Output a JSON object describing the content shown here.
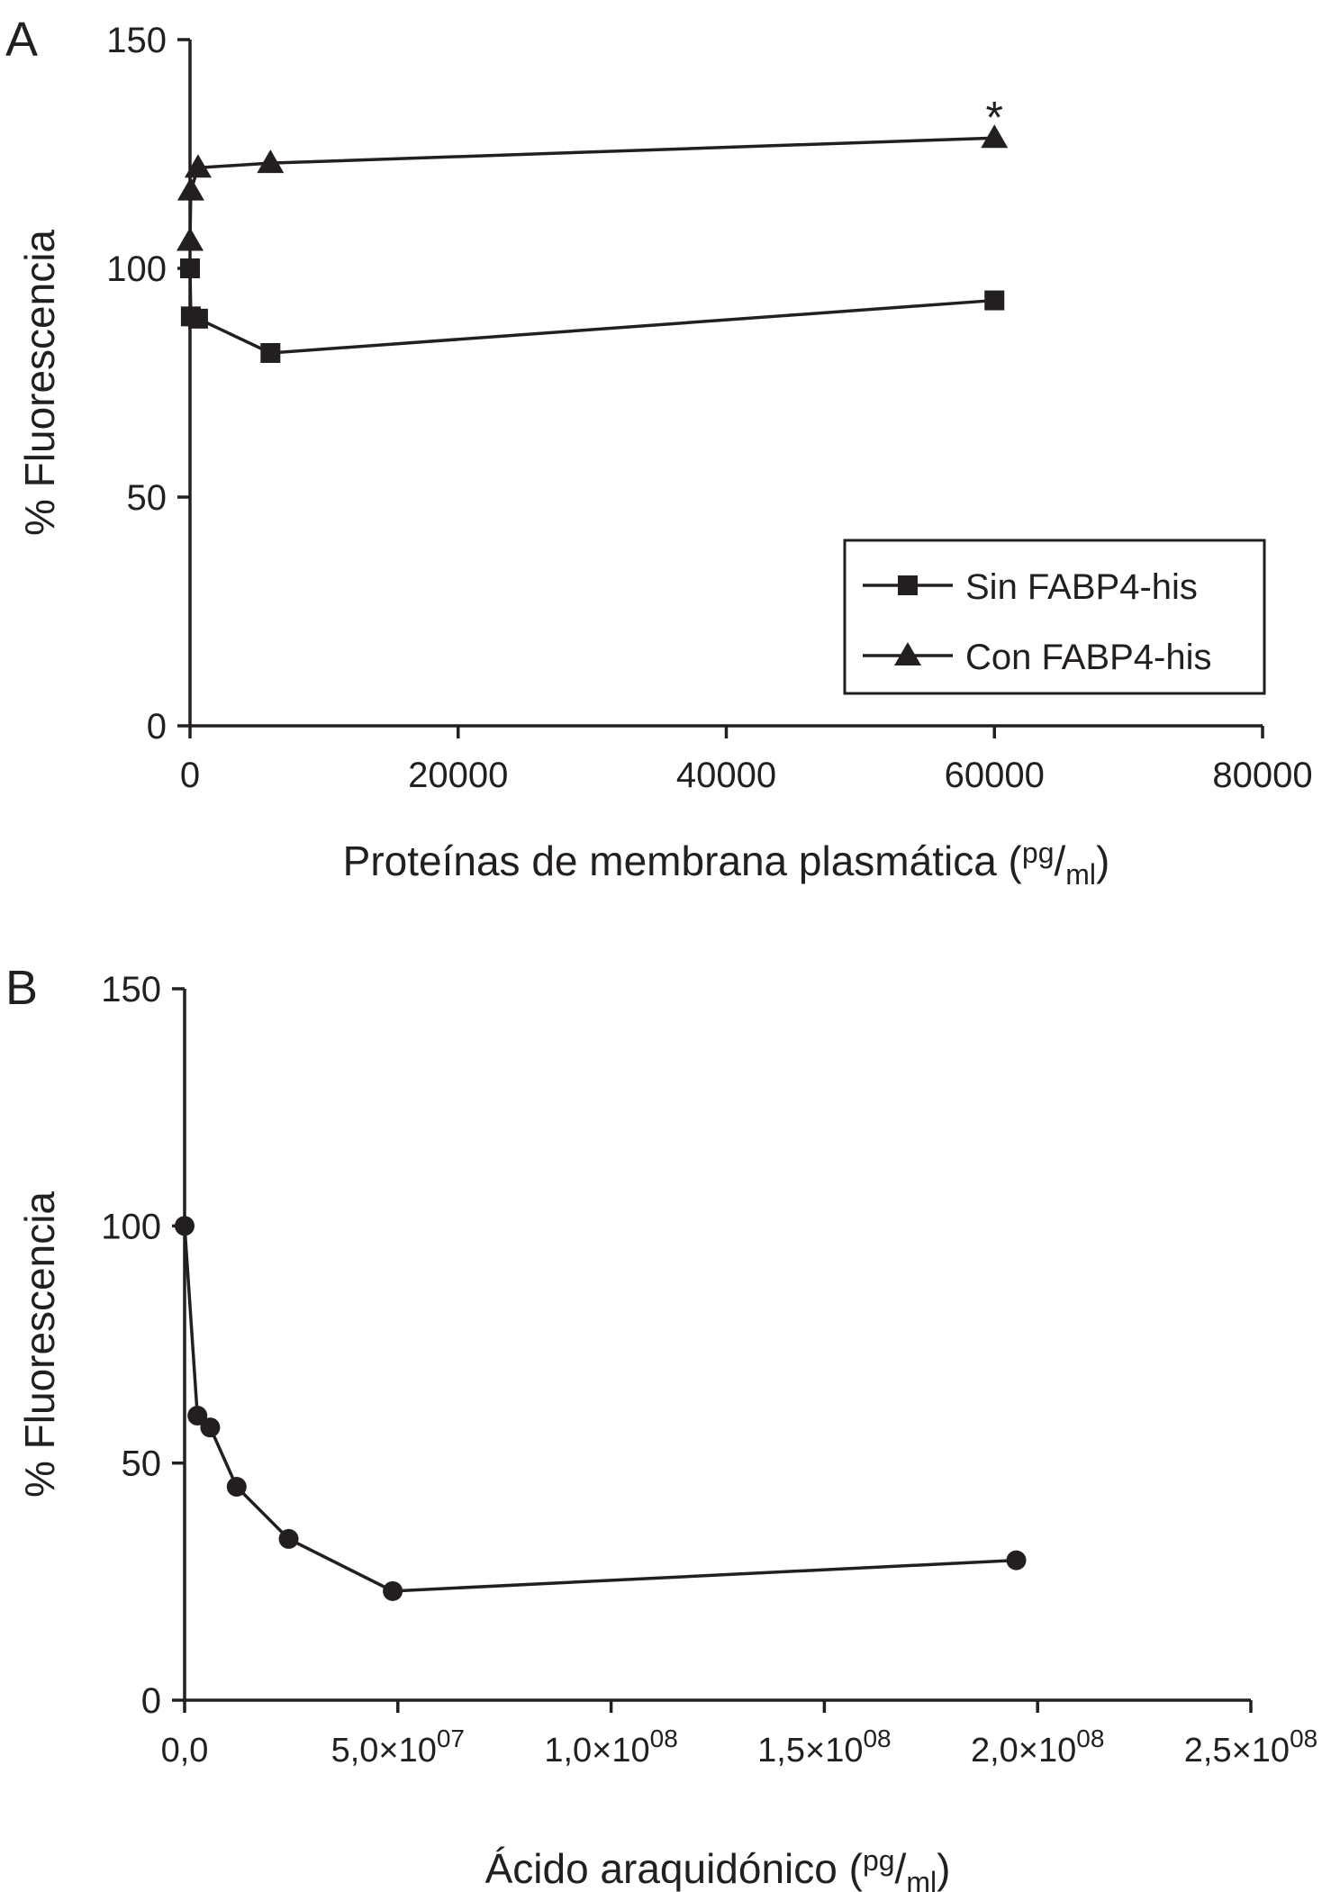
{
  "chart_data": [
    {
      "type": "line",
      "panel_label": "A",
      "xlabel": "Proteínas de membrana plasmática (",
      "xlabel_unit_num": "pg",
      "xlabel_unit_den": "ml",
      "xlabel_close": ")",
      "ylabel": "% Fluorescencia",
      "xlim": [
        0,
        80000
      ],
      "ylim": [
        0,
        150
      ],
      "x_ticks": [
        0,
        20000,
        40000,
        60000,
        80000
      ],
      "x_tick_labels": [
        "0",
        "20000",
        "40000",
        "60000",
        "80000"
      ],
      "y_ticks": [
        0,
        50,
        100,
        150
      ],
      "y_tick_labels": [
        "0",
        "50",
        "100",
        "150"
      ],
      "legend_position": "bottom-right",
      "colors": {
        "ink": "#231f20"
      },
      "series": [
        {
          "name": "Sin FABP4-his",
          "marker": "square",
          "x": [
            0,
            60,
            600,
            6000,
            60000
          ],
          "y": [
            100,
            89.5,
            89,
            81.5,
            93
          ]
        },
        {
          "name": "Con FABP4-his",
          "marker": "triangle",
          "x": [
            0,
            60,
            600,
            6000,
            60000
          ],
          "y": [
            106,
            117,
            122,
            123,
            128.5
          ]
        }
      ],
      "annotations": [
        {
          "text": "*",
          "x": 60000,
          "y": 134
        }
      ]
    },
    {
      "type": "line",
      "panel_label": "B",
      "xlabel": "Ácido araquidónico (",
      "xlabel_unit_num": "pg",
      "xlabel_unit_den": "ml",
      "xlabel_close": ")",
      "ylabel": "% Fluorescencia",
      "xlim": [
        0,
        250000000
      ],
      "ylim": [
        0,
        150
      ],
      "x_ticks": [
        0,
        50000000,
        100000000,
        150000000,
        200000000,
        250000000
      ],
      "x_tick_labels": [
        {
          "mant": "0,0",
          "exp": ""
        },
        {
          "mant": "5,0×10",
          "exp": "07"
        },
        {
          "mant": "1,0×10",
          "exp": "08"
        },
        {
          "mant": "1,5×10",
          "exp": "08"
        },
        {
          "mant": "2,0×10",
          "exp": "08"
        },
        {
          "mant": "2,5×10",
          "exp": "08"
        }
      ],
      "y_ticks": [
        0,
        50,
        100,
        150
      ],
      "y_tick_labels": [
        "0",
        "50",
        "100",
        "150"
      ],
      "colors": {
        "ink": "#231f20"
      },
      "series": [
        {
          "marker": "circle",
          "x": [
            0,
            3000000,
            6000000,
            12200000,
            24400000,
            48800000,
            195000000
          ],
          "y": [
            100,
            60,
            57.5,
            45,
            34,
            23,
            29.5
          ]
        }
      ]
    }
  ]
}
